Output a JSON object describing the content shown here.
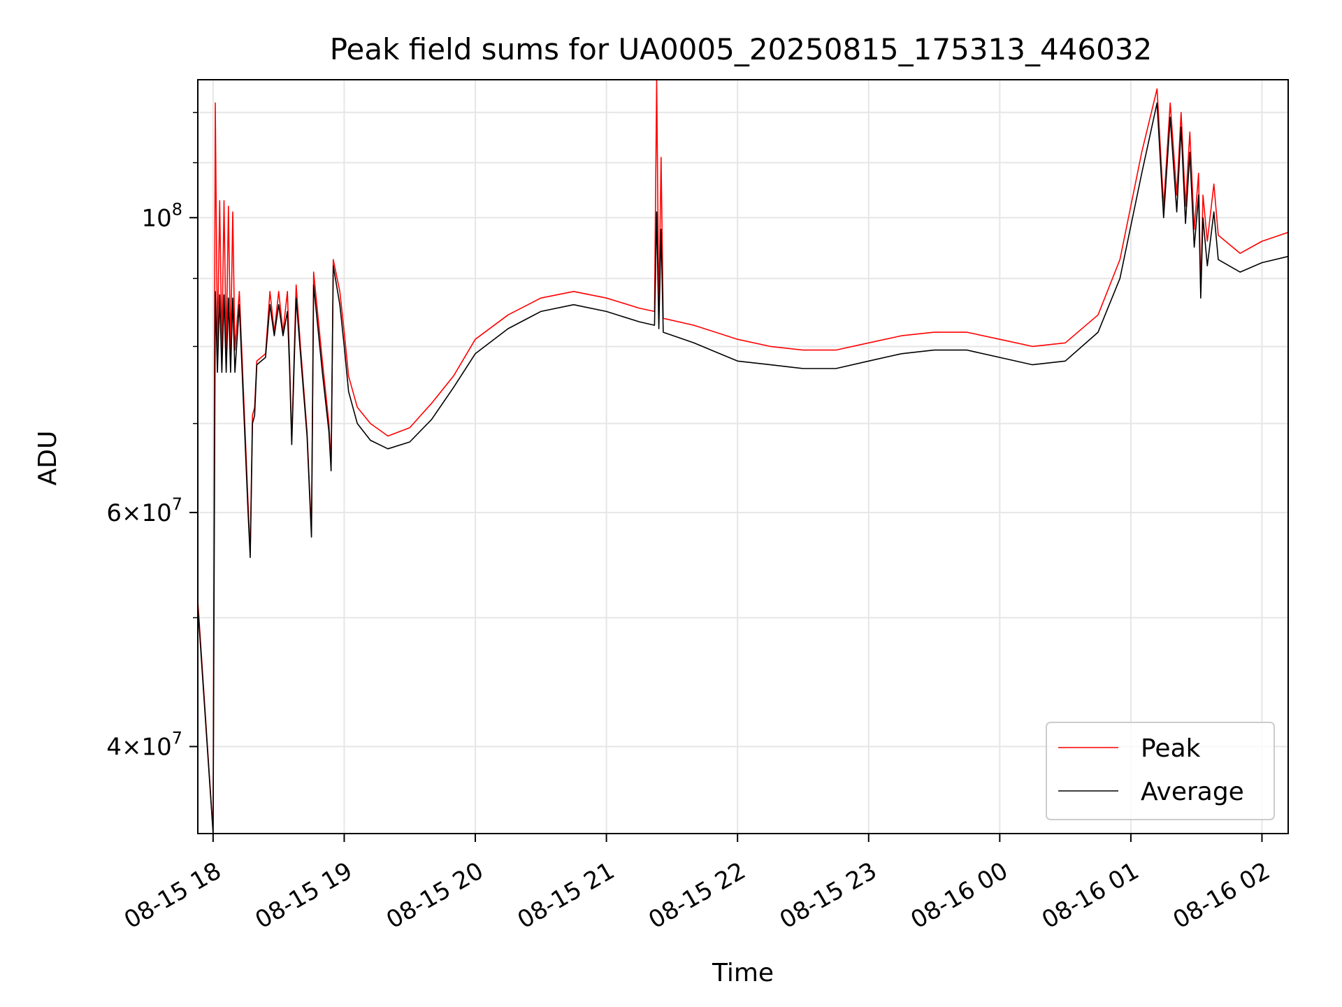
{
  "chart_data": {
    "type": "line",
    "title": "Peak field sums for UA0005_20250815_175313_446032",
    "xlabel": "Time",
    "ylabel": "ADU",
    "y_scale": "log",
    "ylim": [
      34400000,
      127000000
    ],
    "xlim": [
      "08-15 17:53",
      "08-16 02:12"
    ],
    "grid": true,
    "legend_position": "lower-right",
    "x_ticks": [
      "08-15 18",
      "08-15 19",
      "08-15 20",
      "08-15 21",
      "08-15 22",
      "08-15 23",
      "08-16 00",
      "08-16 01",
      "08-16 02"
    ],
    "y_ticks": [
      {
        "value": 100000000,
        "base": "10",
        "exp": "8",
        "mantissa": ""
      },
      {
        "value": 60000000,
        "base": "10",
        "exp": "7",
        "mantissa": "6"
      },
      {
        "value": 40000000,
        "base": "10",
        "exp": "7",
        "mantissa": "4"
      }
    ],
    "times_sign": "×",
    "series": [
      {
        "name": "Peak",
        "color": "#ff0000",
        "points": [
          [
            "08-15 17:53",
            51500000
          ],
          [
            "08-15 18:00",
            34500000
          ],
          [
            "08-15 18:01",
            122000000
          ],
          [
            "08-15 18:02",
            79500000
          ],
          [
            "08-15 18:03",
            103000000
          ],
          [
            "08-15 18:04",
            79500000
          ],
          [
            "08-15 18:05",
            103000000
          ],
          [
            "08-15 18:06",
            79500000
          ],
          [
            "08-15 18:07",
            102000000
          ],
          [
            "08-15 18:08",
            79500000
          ],
          [
            "08-15 18:09",
            101000000
          ],
          [
            "08-15 18:10",
            79500000
          ],
          [
            "08-15 18:12",
            88000000
          ],
          [
            "08-15 18:16",
            61000000
          ],
          [
            "08-15 18:17",
            56000000
          ],
          [
            "08-15 18:18",
            71000000
          ],
          [
            "08-15 18:19",
            72000000
          ],
          [
            "08-15 18:20",
            78000000
          ],
          [
            "08-15 18:24",
            79000000
          ],
          [
            "08-15 18:26",
            88000000
          ],
          [
            "08-15 18:28",
            82000000
          ],
          [
            "08-15 18:30",
            88000000
          ],
          [
            "08-15 18:32",
            82000000
          ],
          [
            "08-15 18:34",
            88000000
          ],
          [
            "08-15 18:35",
            78000000
          ],
          [
            "08-15 18:36",
            68000000
          ],
          [
            "08-15 18:38",
            89000000
          ],
          [
            "08-15 18:40",
            80000000
          ],
          [
            "08-15 18:43",
            69000000
          ],
          [
            "08-15 18:45",
            58000000
          ],
          [
            "08-15 18:46",
            91000000
          ],
          [
            "08-15 18:50",
            78000000
          ],
          [
            "08-15 18:53",
            70000000
          ],
          [
            "08-15 18:54",
            65000000
          ],
          [
            "08-15 18:55",
            93000000
          ],
          [
            "08-15 18:58",
            88000000
          ],
          [
            "08-15 19:00",
            82000000
          ],
          [
            "08-15 19:02",
            76000000
          ],
          [
            "08-15 19:06",
            72000000
          ],
          [
            "08-15 19:12",
            70000000
          ],
          [
            "08-15 19:20",
            68500000
          ],
          [
            "08-15 19:30",
            69500000
          ],
          [
            "08-15 19:40",
            72500000
          ],
          [
            "08-15 19:50",
            76000000
          ],
          [
            "08-15 20:00",
            81000000
          ],
          [
            "08-15 20:15",
            84500000
          ],
          [
            "08-15 20:30",
            87000000
          ],
          [
            "08-15 20:45",
            88000000
          ],
          [
            "08-15 21:00",
            87000000
          ],
          [
            "08-15 21:15",
            85500000
          ],
          [
            "08-15 21:22",
            85000000
          ],
          [
            "08-15 21:23",
            127000000
          ],
          [
            "08-15 21:24",
            84500000
          ],
          [
            "08-15 21:25",
            111000000
          ],
          [
            "08-15 21:26",
            84000000
          ],
          [
            "08-15 21:40",
            83000000
          ],
          [
            "08-15 22:00",
            81000000
          ],
          [
            "08-15 22:15",
            80000000
          ],
          [
            "08-15 22:30",
            79500000
          ],
          [
            "08-15 22:45",
            79500000
          ],
          [
            "08-15 23:00",
            80500000
          ],
          [
            "08-15 23:15",
            81500000
          ],
          [
            "08-15 23:30",
            82000000
          ],
          [
            "08-15 23:45",
            82000000
          ],
          [
            "08-16 00:00",
            81000000
          ],
          [
            "08-16 00:15",
            80000000
          ],
          [
            "08-16 00:30",
            80500000
          ],
          [
            "08-16 00:45",
            84500000
          ],
          [
            "08-16 00:55",
            93000000
          ],
          [
            "08-16 01:05",
            112000000
          ],
          [
            "08-16 01:12",
            125000000
          ],
          [
            "08-16 01:15",
            102000000
          ],
          [
            "08-16 01:18",
            122000000
          ],
          [
            "08-16 01:21",
            104000000
          ],
          [
            "08-16 01:23",
            120000000
          ],
          [
            "08-16 01:25",
            102000000
          ],
          [
            "08-16 01:27",
            116000000
          ],
          [
            "08-16 01:29",
            98000000
          ],
          [
            "08-16 01:31",
            108000000
          ],
          [
            "08-16 01:32",
            88000000
          ],
          [
            "08-16 01:33",
            104000000
          ],
          [
            "08-16 01:35",
            96000000
          ],
          [
            "08-16 01:38",
            106000000
          ],
          [
            "08-16 01:40",
            97000000
          ],
          [
            "08-16 01:50",
            94000000
          ],
          [
            "08-16 02:00",
            96000000
          ],
          [
            "08-16 02:12",
            97500000
          ]
        ]
      },
      {
        "name": "Average",
        "color": "#000000",
        "points": [
          [
            "08-15 17:53",
            51000000
          ],
          [
            "08-15 18:00",
            34400000
          ],
          [
            "08-15 18:01",
            88000000
          ],
          [
            "08-15 18:02",
            76500000
          ],
          [
            "08-15 18:03",
            87500000
          ],
          [
            "08-15 18:04",
            76500000
          ],
          [
            "08-15 18:05",
            87500000
          ],
          [
            "08-15 18:06",
            76500000
          ],
          [
            "08-15 18:07",
            87000000
          ],
          [
            "08-15 18:08",
            76500000
          ],
          [
            "08-15 18:09",
            87000000
          ],
          [
            "08-15 18:10",
            76500000
          ],
          [
            "08-15 18:12",
            86000000
          ],
          [
            "08-15 18:16",
            60000000
          ],
          [
            "08-15 18:17",
            55500000
          ],
          [
            "08-15 18:18",
            70000000
          ],
          [
            "08-15 18:19",
            71000000
          ],
          [
            "08-15 18:20",
            77500000
          ],
          [
            "08-15 18:24",
            78500000
          ],
          [
            "08-15 18:26",
            86000000
          ],
          [
            "08-15 18:28",
            81500000
          ],
          [
            "08-15 18:30",
            86000000
          ],
          [
            "08-15 18:32",
            81500000
          ],
          [
            "08-15 18:34",
            85000000
          ],
          [
            "08-15 18:35",
            77000000
          ],
          [
            "08-15 18:36",
            67500000
          ],
          [
            "08-15 18:38",
            87000000
          ],
          [
            "08-15 18:40",
            79000000
          ],
          [
            "08-15 18:43",
            68500000
          ],
          [
            "08-15 18:45",
            57500000
          ],
          [
            "08-15 18:46",
            89000000
          ],
          [
            "08-15 18:50",
            76500000
          ],
          [
            "08-15 18:53",
            69000000
          ],
          [
            "08-15 18:54",
            64500000
          ],
          [
            "08-15 18:55",
            92000000
          ],
          [
            "08-15 18:58",
            86000000
          ],
          [
            "08-15 19:00",
            80000000
          ],
          [
            "08-15 19:02",
            74000000
          ],
          [
            "08-15 19:06",
            70000000
          ],
          [
            "08-15 19:12",
            68000000
          ],
          [
            "08-15 19:20",
            67000000
          ],
          [
            "08-15 19:30",
            67800000
          ],
          [
            "08-15 19:40",
            70500000
          ],
          [
            "08-15 19:50",
            74500000
          ],
          [
            "08-15 20:00",
            79000000
          ],
          [
            "08-15 20:15",
            82500000
          ],
          [
            "08-15 20:30",
            85000000
          ],
          [
            "08-15 20:45",
            86000000
          ],
          [
            "08-15 21:00",
            85000000
          ],
          [
            "08-15 21:15",
            83500000
          ],
          [
            "08-15 21:22",
            83000000
          ],
          [
            "08-15 21:23",
            101000000
          ],
          [
            "08-15 21:24",
            82500000
          ],
          [
            "08-15 21:25",
            98000000
          ],
          [
            "08-15 21:26",
            82000000
          ],
          [
            "08-15 21:40",
            80500000
          ],
          [
            "08-15 22:00",
            78000000
          ],
          [
            "08-15 22:15",
            77500000
          ],
          [
            "08-15 22:30",
            77000000
          ],
          [
            "08-15 22:45",
            77000000
          ],
          [
            "08-15 23:00",
            78000000
          ],
          [
            "08-15 23:15",
            79000000
          ],
          [
            "08-15 23:30",
            79500000
          ],
          [
            "08-15 23:45",
            79500000
          ],
          [
            "08-16 00:00",
            78500000
          ],
          [
            "08-16 00:15",
            77500000
          ],
          [
            "08-16 00:30",
            78000000
          ],
          [
            "08-16 00:45",
            82000000
          ],
          [
            "08-16 00:55",
            90000000
          ],
          [
            "08-16 01:05",
            108000000
          ],
          [
            "08-16 01:12",
            122000000
          ],
          [
            "08-16 01:15",
            100000000
          ],
          [
            "08-16 01:18",
            119000000
          ],
          [
            "08-16 01:21",
            101000000
          ],
          [
            "08-16 01:23",
            117000000
          ],
          [
            "08-16 01:25",
            99000000
          ],
          [
            "08-16 01:27",
            112000000
          ],
          [
            "08-16 01:29",
            95000000
          ],
          [
            "08-16 01:31",
            104000000
          ],
          [
            "08-16 01:32",
            87000000
          ],
          [
            "08-16 01:33",
            100000000
          ],
          [
            "08-16 01:35",
            92000000
          ],
          [
            "08-16 01:38",
            101000000
          ],
          [
            "08-16 01:40",
            93000000
          ],
          [
            "08-16 01:50",
            91000000
          ],
          [
            "08-16 02:00",
            92500000
          ],
          [
            "08-16 02:12",
            93500000
          ]
        ]
      }
    ]
  }
}
